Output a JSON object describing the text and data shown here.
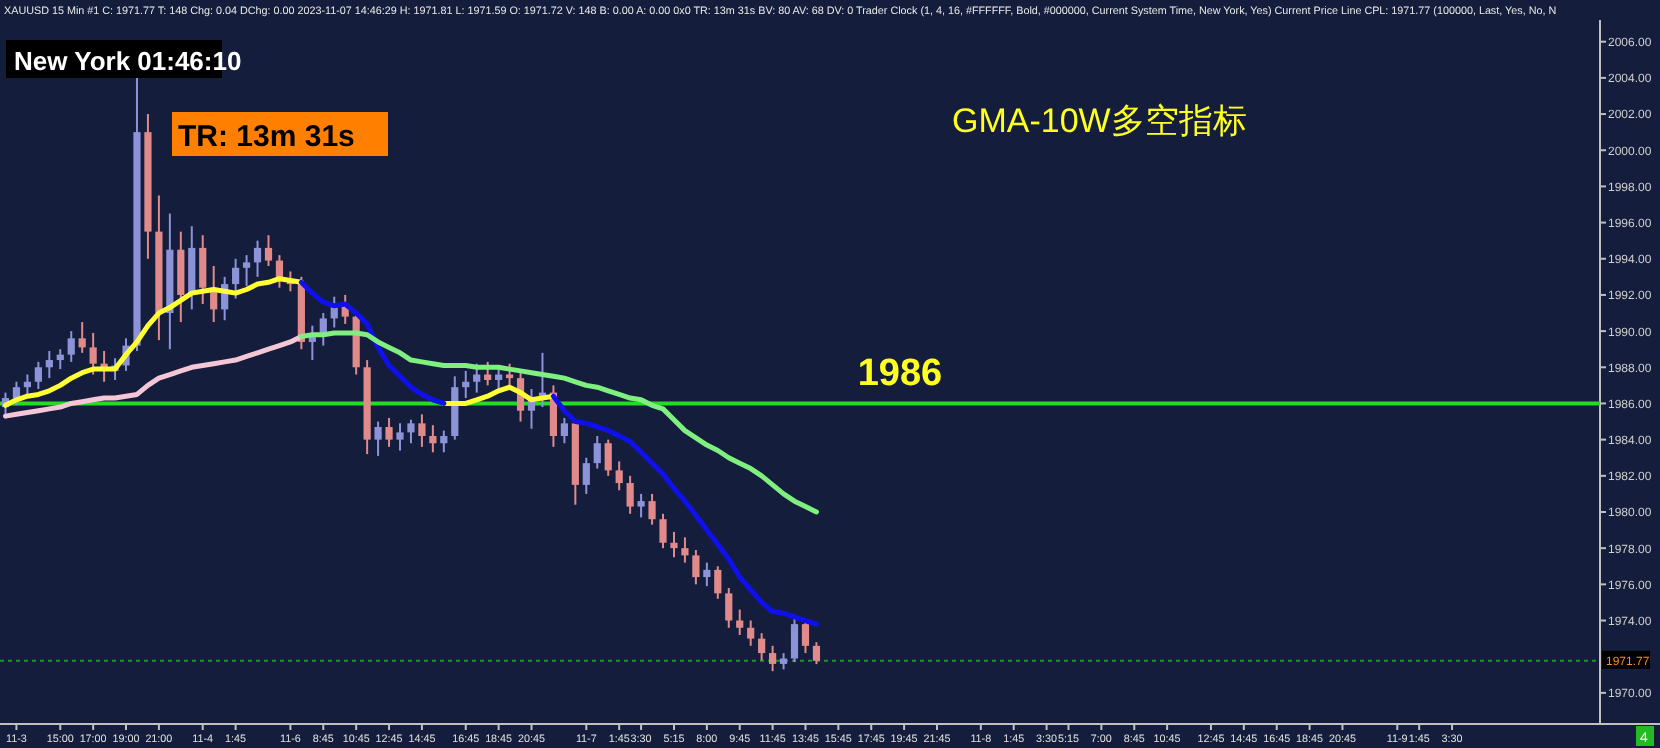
{
  "chart_data": {
    "type": "candlestick",
    "title": "XAUUSD  15 Min  #1  C: 1971.77  T: 148  Chg: 0.04  DChg: 0.00  2023-11-07 14:46:29  H: 1971.81  L: 1971.59  O: 1971.72  V: 148  B: 0.00  A: 0.00  0x0  TR: 13m 31s  BV: 80  AV: 68  DV: 0  Trader Clock  (1, 4, 16, #FFFFFF, Bold, #000000, Current System Time, New York, Yes)  Current Price Line  CPL: 1971.77  (100000, Last, Yes, No, N",
    "annotations": [
      "New York 01:46:10",
      "TR: 13m 31s",
      "GMA-10W多空指标",
      "4"
    ],
    "categories": [
      null,
      "11-3",
      null,
      null,
      null,
      "15:00",
      null,
      null,
      "17:00",
      null,
      null,
      "19:00",
      null,
      null,
      "21:00",
      null,
      null,
      null,
      "11-4",
      null,
      null,
      "1:45",
      null,
      null,
      null,
      null,
      "11-6",
      null,
      null,
      "8:45",
      null,
      null,
      "10:45",
      null,
      null,
      "12:45",
      null,
      null,
      "14:45",
      null,
      null,
      null,
      "16:45",
      null,
      null,
      "18:45",
      null,
      null,
      "20:45",
      null,
      null,
      null,
      null,
      "11-7",
      null,
      null,
      "1:45",
      null,
      "3:30",
      null,
      null,
      "5:15",
      null,
      null,
      "8:00",
      null,
      null,
      "9:45",
      null,
      null,
      "11:45",
      null,
      null,
      "13:45",
      null,
      null,
      "15:45",
      null,
      null,
      "17:45",
      null,
      null,
      "19:45",
      null,
      null,
      "21:45",
      null,
      null,
      null,
      "11-8",
      null,
      null,
      "1:45",
      null,
      null,
      "3:30",
      null,
      "5:15",
      null,
      null,
      "7:00",
      null,
      null,
      "8:45",
      null,
      null,
      "10:45",
      null,
      null,
      null,
      "12:45",
      null,
      null,
      "14:45",
      null,
      null,
      "16:45",
      null,
      null,
      "18:45",
      null,
      null,
      "20:45",
      null,
      null,
      null,
      null,
      "11-9",
      null,
      "1:45",
      null,
      null,
      "3:30",
      null,
      null,
      null,
      null,
      null,
      null,
      null,
      null,
      null,
      null,
      null,
      null,
      null
    ],
    "ohlc": [
      [
        1985.8,
        1986.6,
        1985.4,
        1986.3
      ],
      [
        1986.3,
        1987.2,
        1985.9,
        1986.9
      ],
      [
        1986.9,
        1987.6,
        1986.4,
        1987.2
      ],
      [
        1987.2,
        1988.3,
        1986.8,
        1988.0
      ],
      [
        1988.0,
        1988.9,
        1987.4,
        1988.4
      ],
      [
        1988.4,
        1989.0,
        1987.9,
        1988.7
      ],
      [
        1988.7,
        1990.0,
        1988.3,
        1989.6
      ],
      [
        1989.6,
        1990.5,
        1988.8,
        1989.1
      ],
      [
        1989.1,
        1989.9,
        1987.6,
        1988.2
      ],
      [
        1988.2,
        1988.9,
        1987.2,
        1987.8
      ],
      [
        1987.8,
        1988.5,
        1987.3,
        1988.1
      ],
      [
        1988.1,
        1989.6,
        1987.8,
        1989.2
      ],
      [
        1989.2,
        2004.2,
        1988.9,
        2001.0
      ],
      [
        2001.0,
        2002.0,
        1994.0,
        1995.5
      ],
      [
        1995.5,
        1997.5,
        1989.5,
        1991.0
      ],
      [
        1991.0,
        1996.5,
        1989.0,
        1994.5
      ],
      [
        1994.5,
        1995.5,
        1990.5,
        1992.0
      ],
      [
        1992.0,
        1995.8,
        1991.2,
        1994.6
      ],
      [
        1994.6,
        1995.3,
        1991.5,
        1992.4
      ],
      [
        1992.4,
        1993.6,
        1990.5,
        1991.2
      ],
      [
        1991.2,
        1993.0,
        1990.6,
        1992.6
      ],
      [
        1992.6,
        1994.0,
        1991.8,
        1993.5
      ],
      [
        1993.5,
        1994.2,
        1992.5,
        1993.8
      ],
      [
        1993.8,
        1995.0,
        1993.0,
        1994.6
      ],
      [
        1994.6,
        1995.3,
        1993.6,
        1993.9
      ],
      [
        1993.9,
        1994.2,
        1992.4,
        1992.8
      ],
      [
        1992.8,
        1993.3,
        1992.2,
        1992.6
      ],
      [
        1992.6,
        1993.0,
        1989.0,
        1989.4
      ],
      [
        1989.4,
        1990.3,
        1988.4,
        1989.8
      ],
      [
        1989.8,
        1991.0,
        1989.2,
        1990.7
      ],
      [
        1990.7,
        1991.9,
        1990.2,
        1991.5
      ],
      [
        1991.5,
        1992.0,
        1990.4,
        1990.8
      ],
      [
        1990.8,
        1991.1,
        1987.6,
        1988.0
      ],
      [
        1988.0,
        1988.4,
        1983.2,
        1984.0
      ],
      [
        1984.0,
        1985.0,
        1983.1,
        1984.7
      ],
      [
        1984.7,
        1985.2,
        1983.6,
        1984.0
      ],
      [
        1984.0,
        1984.9,
        1983.4,
        1984.4
      ],
      [
        1984.4,
        1985.1,
        1983.8,
        1984.9
      ],
      [
        1984.9,
        1985.4,
        1983.6,
        1984.2
      ],
      [
        1984.2,
        1984.8,
        1983.3,
        1983.8
      ],
      [
        1983.8,
        1984.5,
        1983.3,
        1984.2
      ],
      [
        1984.2,
        1987.5,
        1984.0,
        1986.9
      ],
      [
        1986.9,
        1987.8,
        1986.3,
        1987.2
      ],
      [
        1987.2,
        1988.2,
        1986.6,
        1987.6
      ],
      [
        1987.6,
        1988.3,
        1987.0,
        1987.3
      ],
      [
        1987.3,
        1988.0,
        1986.8,
        1987.6
      ],
      [
        1987.6,
        1988.2,
        1987.0,
        1987.4
      ],
      [
        1987.4,
        1987.9,
        1985.0,
        1985.6
      ],
      [
        1985.6,
        1986.8,
        1984.6,
        1986.3
      ],
      [
        1986.3,
        1988.8,
        1985.8,
        1986.6
      ],
      [
        1986.6,
        1987.0,
        1983.6,
        1984.2
      ],
      [
        1984.2,
        1985.2,
        1983.8,
        1984.9
      ],
      [
        1984.9,
        1985.0,
        1980.4,
        1981.5
      ],
      [
        1981.5,
        1983.0,
        1981.0,
        1982.7
      ],
      [
        1982.7,
        1984.2,
        1982.4,
        1983.8
      ],
      [
        1983.8,
        1984.0,
        1982.0,
        1982.3
      ],
      [
        1982.3,
        1982.8,
        1981.2,
        1981.6
      ],
      [
        1981.6,
        1982.0,
        1979.9,
        1980.3
      ],
      [
        1980.3,
        1981.0,
        1979.7,
        1980.6
      ],
      [
        1980.6,
        1981.0,
        1979.3,
        1979.6
      ],
      [
        1979.6,
        1979.9,
        1978.0,
        1978.3
      ],
      [
        1978.3,
        1978.9,
        1977.5,
        1978.0
      ],
      [
        1978.0,
        1978.6,
        1977.2,
        1977.6
      ],
      [
        1977.6,
        1977.9,
        1976.0,
        1976.4
      ],
      [
        1976.4,
        1977.2,
        1975.9,
        1976.8
      ],
      [
        1976.8,
        1977.0,
        1975.2,
        1975.5
      ],
      [
        1975.5,
        1975.8,
        1973.6,
        1974.0
      ],
      [
        1974.0,
        1974.6,
        1973.2,
        1973.6
      ],
      [
        1973.6,
        1974.0,
        1972.6,
        1973.0
      ],
      [
        1973.0,
        1973.3,
        1971.8,
        1972.2
      ],
      [
        1972.2,
        1972.6,
        1971.2,
        1971.6
      ],
      [
        1971.6,
        1972.2,
        1971.3,
        1971.9
      ],
      [
        1971.9,
        1974.3,
        1971.7,
        1973.8
      ],
      [
        1973.8,
        1974.0,
        1972.2,
        1972.6
      ],
      [
        1972.6,
        1972.8,
        1971.59,
        1971.77
      ],
      null,
      null,
      null,
      null,
      null,
      null,
      null,
      null,
      null,
      null,
      null,
      null,
      null,
      null,
      null,
      null,
      null,
      null,
      null,
      null,
      null,
      null,
      null,
      null,
      null,
      null,
      null,
      null,
      null,
      null,
      null,
      null,
      null,
      null,
      null,
      null,
      null,
      null,
      null,
      null,
      null,
      null,
      null,
      null,
      null,
      null,
      null,
      null,
      null,
      null,
      null,
      null,
      null,
      null,
      null,
      null,
      null,
      null,
      null,
      null,
      null,
      null,
      null,
      null,
      null,
      null,
      null,
      null,
      null,
      null,
      null
    ],
    "colors": [
      "#8d93d8",
      "#8d93d8",
      "#8d93d8",
      "#8d93d8",
      "#8d93d8",
      "#8d93d8",
      "#8d93d8",
      "#e08a8a",
      "#e08a8a",
      "#e08a8a",
      "#8d93d8",
      "#8d93d8",
      "#8d93d8",
      "#e08a8a",
      "#e08a8a",
      "#8d93d8",
      "#e08a8a",
      "#8d93d8",
      "#e08a8a",
      "#e08a8a",
      "#8d93d8",
      "#8d93d8",
      "#8d93d8",
      "#8d93d8",
      "#e08a8a",
      "#e08a8a",
      "#e08a8a",
      "#e08a8a",
      "#8d93d8",
      "#8d93d8",
      "#8d93d8",
      "#e08a8a",
      "#e08a8a",
      "#e08a8a",
      "#8d93d8",
      "#e08a8a",
      "#8d93d8",
      "#8d93d8",
      "#e08a8a",
      "#e08a8a",
      "#8d93d8",
      "#8d93d8",
      "#8d93d8",
      "#8d93d8",
      "#e08a8a",
      "#8d93d8",
      "#e08a8a",
      "#e08a8a",
      "#8d93d8",
      "#8d93d8",
      "#e08a8a",
      "#8d93d8",
      "#e08a8a",
      "#8d93d8",
      "#8d93d8",
      "#e08a8a",
      "#e08a8a",
      "#e08a8a",
      "#8d93d8",
      "#e08a8a",
      "#e08a8a",
      "#e08a8a",
      "#e08a8a",
      "#e08a8a",
      "#8d93d8",
      "#e08a8a",
      "#e08a8a",
      "#e08a8a",
      "#e08a8a",
      "#e08a8a",
      "#e08a8a",
      "#8d93d8",
      "#8d93d8",
      "#e08a8a",
      "#e08a8a",
      null,
      null,
      null,
      null,
      null,
      null,
      null,
      null,
      null,
      null,
      null,
      null,
      null,
      null,
      null,
      null,
      null,
      null,
      null,
      null,
      null,
      null,
      null,
      null,
      null,
      null,
      null,
      null,
      null,
      null,
      null,
      null,
      null,
      null,
      null,
      null,
      null,
      null,
      null,
      null,
      null,
      null,
      null,
      null,
      null,
      null,
      null,
      null,
      null,
      null,
      null,
      null,
      null,
      null,
      null,
      null,
      null,
      null,
      null,
      null,
      null,
      null,
      null,
      null,
      null,
      null,
      null,
      null,
      null,
      null,
      null
    ],
    "series": [
      {
        "type": "line",
        "color": "#ffff33",
        "values": [
          1985.9,
          1986.2,
          1986.4,
          1986.5,
          1986.7,
          1987.0,
          1987.4,
          1987.7,
          1987.9,
          1987.9,
          1987.9,
          1988.7,
          1989.4,
          1990.3,
          1991.0,
          1991.3,
          1991.7,
          1992.1,
          1992.2,
          1992.3,
          1992.2,
          1992.1,
          1992.3,
          1992.6,
          1992.7,
          1992.9,
          1992.8,
          1992.7,
          null,
          null,
          null,
          null,
          null,
          null,
          null,
          null,
          null,
          null,
          null,
          null,
          1986.0,
          1986.0,
          1986.0,
          1986.2,
          1986.4,
          1986.7,
          1986.9,
          1986.6,
          1986.2,
          1986.3,
          1986.4,
          null,
          null,
          null,
          null,
          null,
          null,
          null,
          null,
          null,
          null,
          null,
          null,
          null,
          null,
          null,
          null,
          null,
          null,
          null,
          null,
          null,
          null,
          null,
          null,
          null,
          null,
          null,
          null,
          null,
          null,
          null,
          null,
          null,
          null,
          null,
          null,
          null,
          null,
          null,
          null,
          null,
          null,
          null,
          null,
          null,
          null,
          null,
          null,
          null,
          null,
          null,
          null,
          null,
          null,
          null,
          null,
          null,
          null,
          null,
          null,
          null,
          null,
          null,
          null,
          null,
          null,
          null,
          null,
          null,
          null,
          null,
          null,
          null,
          null,
          null,
          null,
          null,
          null,
          null,
          null,
          null,
          null,
          null,
          null,
          null,
          null,
          null,
          null,
          null,
          null,
          null,
          null,
          null,
          null,
          null
        ]
      },
      {
        "type": "line",
        "color": "#1010ee",
        "values": [
          null,
          null,
          null,
          null,
          null,
          null,
          null,
          null,
          null,
          null,
          null,
          null,
          null,
          null,
          null,
          null,
          null,
          null,
          null,
          null,
          null,
          null,
          null,
          null,
          null,
          null,
          null,
          1992.7,
          1992.1,
          1991.6,
          1991.4,
          1991.5,
          1991.0,
          1990.4,
          1989.1,
          1988.1,
          1987.5,
          1986.9,
          1986.5,
          1986.2,
          1986.0,
          null,
          null,
          null,
          null,
          null,
          null,
          null,
          null,
          null,
          1986.4,
          1985.6,
          1985.0,
          1984.9,
          1984.7,
          1984.5,
          1984.2,
          1983.9,
          1983.3,
          1982.7,
          1982.1,
          1981.3,
          1980.6,
          1979.8,
          1979.0,
          1978.2,
          1977.4,
          1976.4,
          1975.7,
          1975.0,
          1974.5,
          1974.4,
          1974.2,
          1974.0,
          1973.8,
          null,
          null,
          null,
          null,
          null,
          null,
          null,
          null,
          null,
          null,
          null,
          null,
          null,
          null,
          null,
          null,
          null,
          null,
          null,
          null,
          null,
          null,
          null,
          null,
          null,
          null,
          null,
          null,
          null,
          null,
          null,
          null,
          null,
          null,
          null,
          null,
          null,
          null,
          null,
          null,
          null,
          null,
          null,
          null,
          null,
          null,
          null,
          null,
          null,
          null,
          null,
          null,
          null,
          null,
          null,
          null,
          null,
          null,
          null,
          null,
          null,
          null,
          null,
          null,
          null,
          null,
          null,
          null,
          null,
          null,
          null
        ]
      },
      {
        "type": "line",
        "color": "#f4c6d6",
        "values": [
          1985.3,
          1985.4,
          1985.5,
          1985.6,
          1985.7,
          1985.8,
          1986.0,
          1986.1,
          1986.2,
          1986.3,
          1986.3,
          1986.4,
          1986.5,
          1987.0,
          1987.4,
          1987.6,
          1987.8,
          1988.0,
          1988.1,
          1988.2,
          1988.3,
          1988.4,
          1988.6,
          1988.8,
          1989.0,
          1989.2,
          1989.4,
          1989.7,
          null,
          null,
          null,
          null,
          null,
          null,
          null,
          null,
          null,
          null,
          null,
          null,
          null,
          null,
          null,
          null,
          null,
          null,
          null,
          null,
          null,
          null,
          null,
          null,
          null,
          null,
          null,
          null,
          null,
          null,
          null,
          null,
          null,
          null,
          null,
          null,
          null,
          null,
          null,
          null,
          null,
          null,
          null,
          null,
          null,
          null,
          null,
          null,
          null,
          null,
          null,
          null,
          null,
          null,
          null,
          null,
          null,
          null,
          null,
          null,
          null,
          null,
          null,
          null,
          null,
          null,
          null,
          null,
          null,
          null,
          null,
          null,
          null,
          null,
          null,
          null,
          null,
          null,
          null,
          null,
          null,
          null,
          null,
          null,
          null,
          null,
          null,
          null,
          null,
          null,
          null,
          null,
          null,
          null,
          null,
          null,
          null,
          null,
          null,
          null,
          null,
          null,
          null,
          null,
          null,
          null,
          null,
          null,
          null,
          null,
          null,
          null,
          null,
          null,
          null,
          null,
          null,
          null
        ]
      },
      {
        "type": "line",
        "color": "#7ff07f",
        "values": [
          null,
          null,
          null,
          null,
          null,
          null,
          null,
          null,
          null,
          null,
          null,
          null,
          null,
          null,
          null,
          null,
          null,
          null,
          null,
          null,
          null,
          null,
          null,
          null,
          null,
          null,
          null,
          1989.7,
          1989.8,
          1989.8,
          1989.9,
          1989.9,
          1989.9,
          1989.8,
          1989.4,
          1989.1,
          1988.8,
          1988.4,
          1988.3,
          1988.2,
          1988.1,
          1988.1,
          1988.1,
          1988.0,
          1988.0,
          1988.0,
          1987.9,
          1987.8,
          1987.7,
          1987.6,
          1987.5,
          1987.4,
          1987.2,
          1987.0,
          1986.9,
          1986.7,
          1986.5,
          1986.3,
          1986.2,
          1985.9,
          1985.7,
          1985.1,
          1984.5,
          1984.1,
          1983.7,
          1983.4,
          1983.0,
          1982.7,
          1982.4,
          1982.0,
          1981.5,
          1981.0,
          1980.6,
          1980.3,
          1980.0,
          null,
          null,
          null,
          null,
          null,
          null,
          null,
          null,
          null,
          null,
          null,
          null,
          null,
          null,
          null,
          null,
          null,
          null,
          null,
          null,
          null,
          null,
          null,
          null,
          null,
          null,
          null,
          null,
          null,
          null,
          null,
          null,
          null,
          null,
          null,
          null,
          null,
          null,
          null,
          null,
          null,
          null,
          null,
          null,
          null,
          null,
          null,
          null,
          null,
          null,
          null,
          null,
          null,
          null,
          null,
          null,
          null,
          null,
          null,
          null,
          null,
          null,
          null,
          null,
          null,
          null,
          null,
          null,
          null,
          null,
          null
        ]
      }
    ],
    "ref_lines": [
      {
        "axis": "y",
        "value": 1986,
        "label": "1986",
        "color": "#22dd22",
        "line_style": "solid"
      },
      {
        "axis": "y",
        "value": 1971.77,
        "label": "1971.77",
        "color": "#1a9a1a",
        "line_style": "dotted"
      }
    ],
    "ylim": [
      1968.5,
      2007.2
    ],
    "yticks": [
      {
        "value": 1970,
        "label": "1970.00"
      },
      {
        "value": 1974,
        "label": "1974.00"
      },
      {
        "value": 1976,
        "label": "1976.00"
      },
      {
        "value": 1978,
        "label": "1978.00"
      },
      {
        "value": 1980,
        "label": "1980.00"
      },
      {
        "value": 1982,
        "label": "1982.00"
      },
      {
        "value": 1984,
        "label": "1984.00"
      },
      {
        "value": 1986,
        "label": "1986.00"
      },
      {
        "value": 1988,
        "label": "1988.00"
      },
      {
        "value": 1990,
        "label": "1990.00"
      },
      {
        "value": 1992,
        "label": "1992.00"
      },
      {
        "value": 1994,
        "label": "1994.00"
      },
      {
        "value": 1996,
        "label": "1996.00"
      },
      {
        "value": 1998,
        "label": "1998.00"
      },
      {
        "value": 2000,
        "label": "2000.00"
      },
      {
        "value": 2002,
        "label": "2002.00"
      },
      {
        "value": 2004,
        "label": "2004.00"
      },
      {
        "value": 2006,
        "label": "2006.00"
      }
    ],
    "grid": false
  }
}
